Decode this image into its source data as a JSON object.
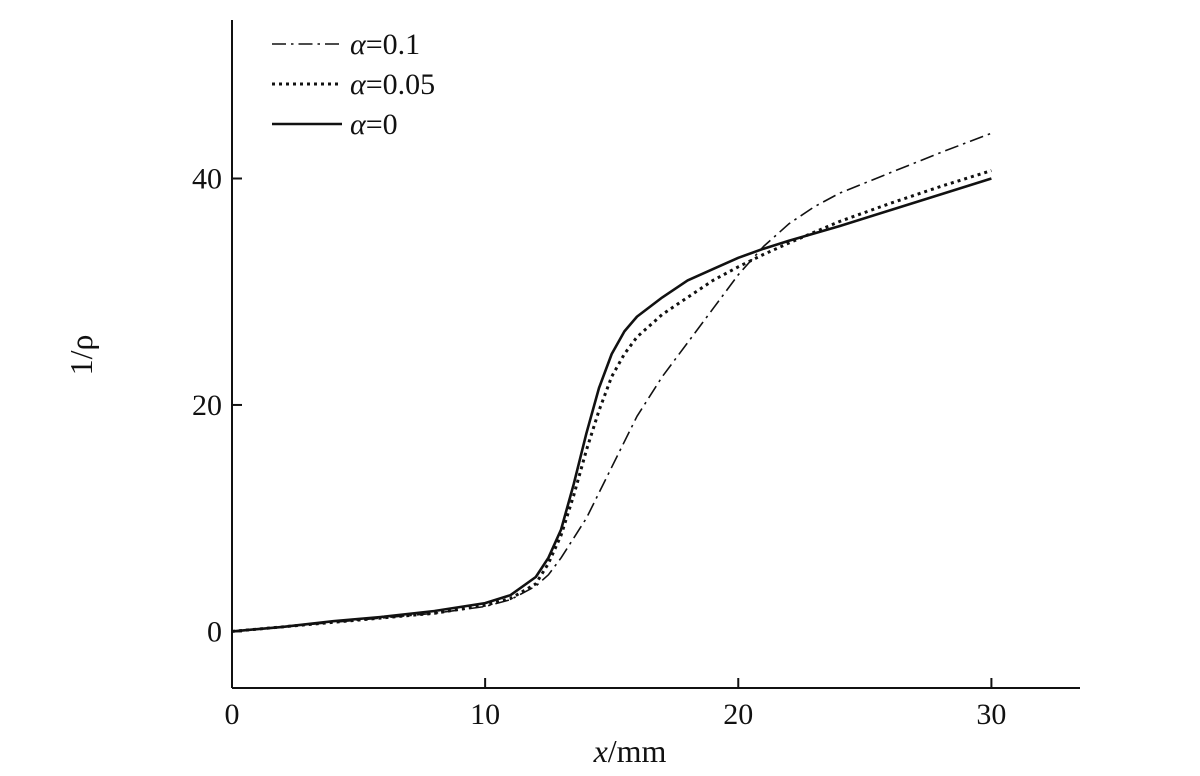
{
  "chart_data": {
    "type": "line",
    "title": "",
    "xlabel": {
      "var": "x",
      "unit": "/mm"
    },
    "ylabel": "1/ρ",
    "xlim": [
      0,
      33.5
    ],
    "ylim": [
      -5,
      54
    ],
    "xticks": [
      0,
      10,
      20,
      30
    ],
    "yticks": [
      0,
      20,
      40
    ],
    "grid": false,
    "legend_position": "top-left",
    "series": [
      {
        "name": "α=0.1",
        "style": "dashdot",
        "legend": {
          "var": "α",
          "rest": "=0.1"
        },
        "x": [
          0,
          2,
          4,
          6,
          8,
          10,
          11,
          12,
          12.5,
          13,
          14,
          15,
          16,
          17,
          18,
          19,
          20,
          21,
          22,
          23,
          24,
          26,
          28,
          30
        ],
        "y": [
          0,
          0.4,
          0.8,
          1.2,
          1.6,
          2.2,
          2.8,
          4.0,
          5.0,
          6.5,
          10.0,
          14.5,
          19.0,
          22.5,
          25.5,
          28.5,
          31.5,
          34.0,
          36.0,
          37.5,
          38.7,
          40.5,
          42.3,
          44.0
        ]
      },
      {
        "name": "α=0.05",
        "style": "dotted",
        "legend": {
          "var": "α",
          "rest": "=0.05"
        },
        "x": [
          0,
          2,
          4,
          6,
          8,
          10,
          11,
          12,
          12.5,
          13,
          13.5,
          14,
          14.5,
          15,
          15.5,
          16,
          17,
          18,
          19,
          20,
          21,
          22,
          24,
          26,
          28,
          30
        ],
        "y": [
          0,
          0.4,
          0.8,
          1.2,
          1.6,
          2.3,
          2.9,
          4.2,
          6.0,
          8.5,
          12.0,
          16.0,
          19.5,
          22.5,
          24.5,
          26.0,
          28.0,
          29.5,
          31.0,
          32.2,
          33.3,
          34.3,
          36.2,
          37.8,
          39.3,
          40.7
        ]
      },
      {
        "name": "α=0",
        "style": "solid",
        "legend": {
          "var": "α",
          "rest": "=0"
        },
        "x": [
          0,
          2,
          4,
          6,
          8,
          10,
          11,
          12,
          12.5,
          13,
          13.5,
          14,
          14.5,
          15,
          15.5,
          16,
          17,
          18,
          19,
          20,
          21,
          22,
          24,
          26,
          28,
          30
        ],
        "y": [
          0,
          0.4,
          0.9,
          1.3,
          1.8,
          2.5,
          3.2,
          4.8,
          6.5,
          9.0,
          13.0,
          17.5,
          21.5,
          24.5,
          26.5,
          27.8,
          29.5,
          31.0,
          32.0,
          33.0,
          33.8,
          34.5,
          35.8,
          37.2,
          38.6,
          40.0
        ]
      }
    ]
  }
}
